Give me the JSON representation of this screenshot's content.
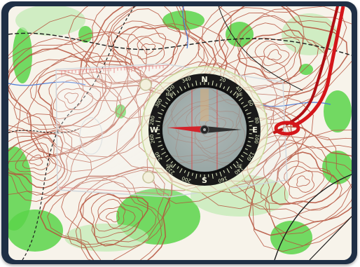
{
  "image": {
    "subject": "orienteering-map-with-baseplate-compass",
    "palette": {
      "paper": "#f7f3ea",
      "contour": "#b5523c",
      "vegetation": "#5bd44a",
      "light_green": "#bfe9b2",
      "water": "#4a7ad6",
      "black_path": "#1c1c1c",
      "lanyard": "#d4161a",
      "bezel_dark": "#1a1a1a",
      "bezel_glow": "#e8f3c8",
      "needle_red": "#d3232a",
      "frame": "#1f2f45"
    },
    "compass": {
      "cardinals": [
        "N",
        "E",
        "S",
        "W"
      ],
      "bezel_numbers": [
        "20",
        "40",
        "60",
        "80",
        "100",
        "120",
        "140",
        "160",
        "180",
        "200",
        "220",
        "240",
        "260",
        "280",
        "300",
        "320",
        "340",
        "360"
      ],
      "intercardinals": [
        "NE",
        "SE",
        "SW",
        "NW"
      ]
    }
  }
}
